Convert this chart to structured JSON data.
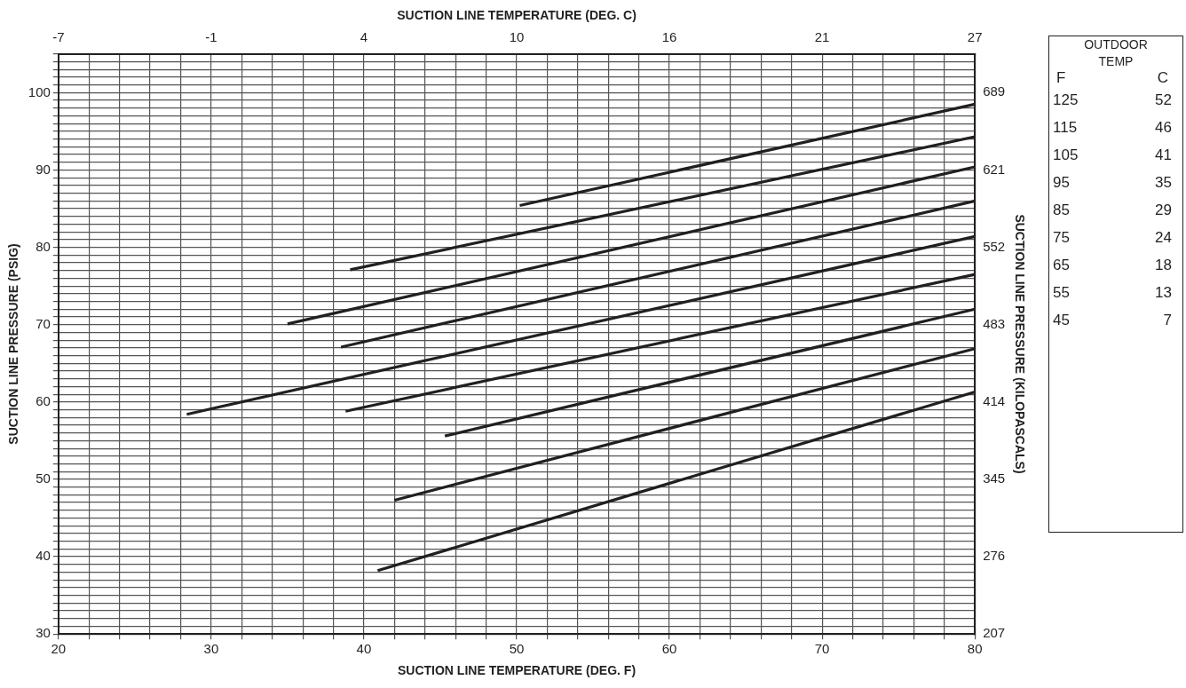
{
  "chart_data": {
    "type": "line",
    "xlabel": "SUCTION LINE TEMPERATURE (DEG. F)",
    "x2label": "SUCTION LINE TEMPERATURE (DEG. C)",
    "ylabel": "SUCTION LINE PRESSURE (PSIG)",
    "y2label": "SUCTION LINE PRESSURE (KILOPASCALS)",
    "xlim": [
      20,
      80
    ],
    "ylim": [
      30,
      105
    ],
    "x2lim": [
      -6.667,
      26.667
    ],
    "y2lim": [
      206.84,
      723.95
    ],
    "xticks": [
      20,
      {
        "value": 22,
        "label": null
      },
      {
        "value": 24,
        "label": null
      },
      {
        "value": 26,
        "label": null
      },
      {
        "value": 28,
        "label": null
      },
      30,
      {
        "value": 32,
        "label": null
      },
      {
        "value": 34,
        "label": null
      },
      {
        "value": 36,
        "label": null
      },
      {
        "value": 38,
        "label": null
      },
      40,
      {
        "value": 42,
        "label": null
      },
      {
        "value": 44,
        "label": null
      },
      {
        "value": 46,
        "label": null
      },
      {
        "value": 48,
        "label": null
      },
      50,
      {
        "value": 52,
        "label": null
      },
      {
        "value": 54,
        "label": null
      },
      {
        "value": 56,
        "label": null
      },
      {
        "value": 58,
        "label": null
      },
      60,
      {
        "value": 62,
        "label": null
      },
      {
        "value": 64,
        "label": null
      },
      {
        "value": 66,
        "label": null
      },
      {
        "value": 68,
        "label": null
      },
      70,
      {
        "value": 72,
        "label": null
      },
      {
        "value": 74,
        "label": null
      },
      {
        "value": 76,
        "label": null
      },
      {
        "value": 78,
        "label": null
      },
      80
    ],
    "yticks": [
      30,
      {
        "value": 31,
        "label": null
      },
      {
        "value": 32,
        "label": null
      },
      {
        "value": 33,
        "label": null
      },
      {
        "value": 34,
        "label": null
      },
      {
        "value": 35,
        "label": null
      },
      {
        "value": 36,
        "label": null
      },
      {
        "value": 37,
        "label": null
      },
      {
        "value": 38,
        "label": null
      },
      {
        "value": 39,
        "label": null
      },
      40,
      {
        "value": 41,
        "label": null
      },
      {
        "value": 42,
        "label": null
      },
      {
        "value": 43,
        "label": null
      },
      {
        "value": 44,
        "label": null
      },
      {
        "value": 45,
        "label": null
      },
      {
        "value": 46,
        "label": null
      },
      {
        "value": 47,
        "label": null
      },
      {
        "value": 48,
        "label": null
      },
      {
        "value": 49,
        "label": null
      },
      50,
      {
        "value": 51,
        "label": null
      },
      {
        "value": 52,
        "label": null
      },
      {
        "value": 53,
        "label": null
      },
      {
        "value": 54,
        "label": null
      },
      {
        "value": 55,
        "label": null
      },
      {
        "value": 56,
        "label": null
      },
      {
        "value": 57,
        "label": null
      },
      {
        "value": 58,
        "label": null
      },
      {
        "value": 59,
        "label": null
      },
      60,
      {
        "value": 61,
        "label": null
      },
      {
        "value": 62,
        "label": null
      },
      {
        "value": 63,
        "label": null
      },
      {
        "value": 64,
        "label": null
      },
      {
        "value": 65,
        "label": null
      },
      {
        "value": 66,
        "label": null
      },
      {
        "value": 67,
        "label": null
      },
      {
        "value": 68,
        "label": null
      },
      {
        "value": 69,
        "label": null
      },
      70,
      {
        "value": 71,
        "label": null
      },
      {
        "value": 72,
        "label": null
      },
      {
        "value": 73,
        "label": null
      },
      {
        "value": 74,
        "label": null
      },
      {
        "value": 75,
        "label": null
      },
      {
        "value": 76,
        "label": null
      },
      {
        "value": 77,
        "label": null
      },
      {
        "value": 78,
        "label": null
      },
      {
        "value": 79,
        "label": null
      },
      80,
      {
        "value": 81,
        "label": null
      },
      {
        "value": 82,
        "label": null
      },
      {
        "value": 83,
        "label": null
      },
      {
        "value": 84,
        "label": null
      },
      {
        "value": 85,
        "label": null
      },
      {
        "value": 86,
        "label": null
      },
      {
        "value": 87,
        "label": null
      },
      {
        "value": 88,
        "label": null
      },
      {
        "value": 89,
        "label": null
      },
      90,
      {
        "value": 91,
        "label": null
      },
      {
        "value": 92,
        "label": null
      },
      {
        "value": 93,
        "label": null
      },
      {
        "value": 94,
        "label": null
      },
      {
        "value": 95,
        "label": null
      },
      {
        "value": 96,
        "label": null
      },
      {
        "value": 97,
        "label": null
      },
      {
        "value": 98,
        "label": null
      },
      {
        "value": 99,
        "label": null
      },
      100,
      {
        "value": 101,
        "label": null
      },
      {
        "value": 102,
        "label": null
      },
      {
        "value": 103,
        "label": null
      },
      {
        "value": 104,
        "label": null
      },
      {
        "value": 105,
        "label": null
      }
    ],
    "x2ticks": [
      {
        "value": -6.667,
        "label": "-7"
      },
      {
        "value": -1.111,
        "label": "-1"
      },
      {
        "value": 4.444,
        "label": "4"
      },
      {
        "value": 10,
        "label": "10"
      },
      {
        "value": 15.556,
        "label": "16"
      },
      {
        "value": 21.111,
        "label": "21"
      },
      {
        "value": 26.667,
        "label": "27"
      }
    ],
    "y2ticks": [
      {
        "value": 206.84,
        "label": "207"
      },
      {
        "value": 275.79,
        "label": "276"
      },
      {
        "value": 344.74,
        "label": "345"
      },
      {
        "value": 413.69,
        "label": "414"
      },
      {
        "value": 482.63,
        "label": "483"
      },
      {
        "value": 551.58,
        "label": "552"
      },
      {
        "value": 620.53,
        "label": "621"
      },
      {
        "value": 689.48,
        "label": "689"
      }
    ],
    "grid": true,
    "series": [
      {
        "color": "#231f20",
        "x": [
          50.2,
          80
        ],
        "values": [
          85.4,
          98.5
        ]
      },
      {
        "color": "#231f20",
        "x": [
          39.1,
          80
        ],
        "values": [
          77.1,
          94.3
        ]
      },
      {
        "color": "#231f20",
        "x": [
          35.0,
          80
        ],
        "values": [
          70.1,
          90.4
        ]
      },
      {
        "color": "#231f20",
        "x": [
          38.5,
          80
        ],
        "values": [
          67.1,
          86.0
        ]
      },
      {
        "color": "#231f20",
        "x": [
          28.4,
          80
        ],
        "values": [
          58.4,
          81.4
        ]
      },
      {
        "color": "#231f20",
        "x": [
          38.8,
          80
        ],
        "values": [
          58.8,
          76.5
        ]
      },
      {
        "color": "#231f20",
        "x": [
          45.3,
          80
        ],
        "values": [
          55.6,
          72.0
        ]
      },
      {
        "color": "#231f20",
        "x": [
          42.0,
          80
        ],
        "values": [
          47.3,
          66.9
        ]
      },
      {
        "color": "#231f20",
        "x": [
          40.9,
          80
        ],
        "values": [
          38.2,
          61.3
        ]
      }
    ],
    "annotations": [
      "OUTDOOR TEMP",
      "F",
      "C",
      "125",
      "52",
      "115",
      "46",
      "105",
      "41",
      "95",
      "35",
      "85",
      "29",
      "75",
      "24",
      "65",
      "18",
      "55",
      "13",
      "45",
      "7"
    ]
  }
}
